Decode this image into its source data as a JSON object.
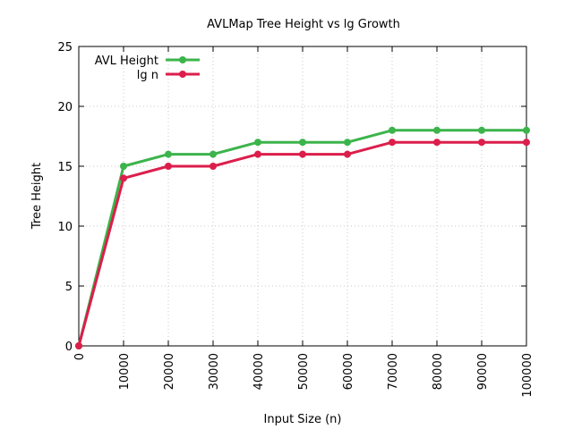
{
  "chart_data": {
    "type": "line",
    "title": "AVLMap Tree Height vs lg Growth",
    "xlabel": "Input Size (n)",
    "ylabel": "Tree Height",
    "x": [
      0,
      10000,
      20000,
      30000,
      40000,
      50000,
      60000,
      70000,
      80000,
      90000,
      100000
    ],
    "xticks": [
      "0",
      "10000",
      "20000",
      "30000",
      "40000",
      "50000",
      "60000",
      "70000",
      "80000",
      "90000",
      "100000"
    ],
    "yticks": [
      "0",
      "5",
      "10",
      "15",
      "20",
      "25"
    ],
    "xlim": [
      0,
      100000
    ],
    "ylim": [
      0,
      25
    ],
    "grid": true,
    "legend_position": "top-left",
    "series": [
      {
        "name": "AVL Height",
        "color": "#3cb44b",
        "values": [
          0,
          15,
          16,
          16,
          17,
          17,
          17,
          18,
          18,
          18,
          18
        ]
      },
      {
        "name": "lg n",
        "color": "#dc1e4b",
        "values": [
          0,
          14,
          15,
          15,
          16,
          16,
          16,
          17,
          17,
          17,
          17
        ]
      }
    ]
  }
}
